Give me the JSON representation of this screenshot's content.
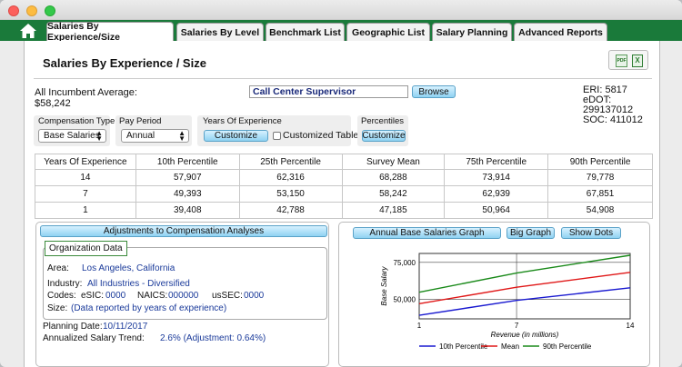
{
  "tabs": [
    {
      "label": "Salaries By Experience/Size",
      "active": true
    },
    {
      "label": "Salaries By Level",
      "active": false
    },
    {
      "label": "Benchmark List",
      "active": false
    },
    {
      "label": "Geographic List",
      "active": false
    },
    {
      "label": "Salary Planning",
      "active": false
    },
    {
      "label": "Advanced Reports",
      "active": false
    }
  ],
  "page": {
    "title": "Salaries By Experience / Size"
  },
  "export": {
    "pdf_label": "PDF",
    "excel_label": "X"
  },
  "summary": {
    "avg_label": "All Incumbent Average:",
    "avg_value": "$58,242"
  },
  "job": {
    "value": "Call Center Supervisor",
    "browse_label": "Browse"
  },
  "codes": {
    "eri": "ERI: 5817",
    "edot": "eDOT: 299137012",
    "soc": "SOC: 411012"
  },
  "controls": {
    "comp_type": {
      "label": "Compensation Type",
      "value": "Base Salaries"
    },
    "pay_period": {
      "label": "Pay Period",
      "value": "Annual"
    },
    "years": {
      "label": "Years Of Experience",
      "button": "Customize",
      "checkbox_label": "Customized Table",
      "checked": false
    },
    "percentiles": {
      "label": "Percentiles",
      "button": "Customize"
    }
  },
  "table": {
    "headers": [
      "Years Of Experience",
      "10th Percentile",
      "25th Percentile",
      "Survey Mean",
      "75th Percentile",
      "90th Percentile"
    ],
    "rows": [
      [
        "14",
        "57,907",
        "62,316",
        "68,288",
        "73,914",
        "79,778"
      ],
      [
        "7",
        "49,393",
        "53,150",
        "58,242",
        "62,939",
        "67,851"
      ],
      [
        "1",
        "39,408",
        "42,788",
        "47,185",
        "50,964",
        "54,908"
      ]
    ]
  },
  "adjustments": {
    "header": "Adjustments to Compensation Analyses",
    "org_title": "Organization Data",
    "area_label": "Area:",
    "area_value": "Los Angeles, California",
    "industry_label": "Industry:",
    "industry_value": "All Industries - Diversified",
    "codes_label": "Codes:",
    "esic_label": "eSIC:",
    "esic_value": "0000",
    "naics_label": "NAICS:",
    "naics_value": "000000",
    "ussec_label": "usSEC:",
    "ussec_value": "0000",
    "size_label": "Size:",
    "size_value": "(Data reported by years of experience)",
    "planning_label": "Planning Date:",
    "planning_value": "10/11/2017",
    "trend_label": "Annualized Salary Trend:",
    "trend_value": "2.6% (Adjustment: 0.64%)"
  },
  "graph": {
    "title_button": "Annual Base Salaries Graph",
    "big_button": "Big Graph",
    "dots_button": "Show Dots"
  },
  "chart_data": {
    "type": "line",
    "x": [
      1,
      7,
      14
    ],
    "xticks": [
      "1",
      "7",
      "14"
    ],
    "yticks": [
      50000,
      75000
    ],
    "ytick_labels": [
      "50,000",
      "75,000"
    ],
    "ylim": [
      37000,
      81000
    ],
    "xlabel": "Revenue (in millions)",
    "ylabel": "Base Salary",
    "grid": true,
    "series": [
      {
        "name": "10th Percentile",
        "color": "#1a1ad0",
        "values": [
          39408,
          49393,
          57907
        ]
      },
      {
        "name": "Mean",
        "color": "#e01818",
        "values": [
          47185,
          58242,
          68288
        ]
      },
      {
        "name": "90th Percentile",
        "color": "#1a8a1a",
        "values": [
          54908,
          67851,
          79778
        ]
      }
    ]
  }
}
